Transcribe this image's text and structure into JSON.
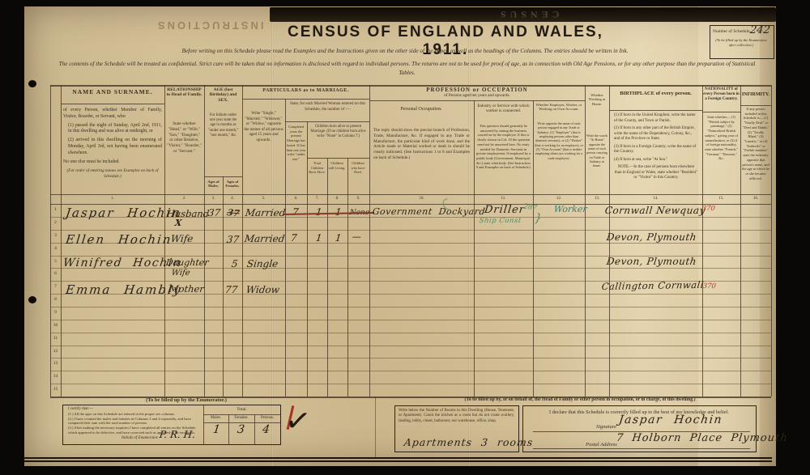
{
  "title": "CENSUS  OF  ENGLAND  AND  WALES,  1911.",
  "instructions_line1": "Before writing on this Schedule please read the Examples and the Instructions given on the other side of the paper, as well as the headings of the Columns.  The entries should be written in Ink.",
  "instructions_line2": "The contents of the Schedule will be treated as confidential.  Strict care will be taken that no information is disclosed with regard to individual persons.  The returns are not to be used for proof of age, as in connection with Old Age Pensions, or for any other purpose than the preparation of Statistical Tables.",
  "schedule_box": {
    "label": "Number of Schedule.",
    "value": "242",
    "note": "(To be filled up by the Enumerator after collection.)"
  },
  "showthrough": {
    "top_left": "INSTRUCTIONS",
    "top_band": "CENSUS"
  },
  "header": {
    "name": {
      "title": "NAME AND SURNAME.",
      "note1": "of every Person, whether Member of Family, Visitor, Boarder, or Servant, who",
      "item1": "(1) passed the night of Sunday, April 2nd, 1911, in this dwelling and was alive at midnight, or",
      "item2": "(2) arrived in this dwelling on the morning of Monday, April 3rd, not having been enumerated elsewhere.",
      "note2": "No one else must be included.",
      "note3": "(For order of entering names see Examples on back of Schedule.)"
    },
    "relationship": {
      "title": "RELATIONSHIP to Head of Family.",
      "note": "State whether \"Head,\" or \"Wife,\" \"Son,\" \"Daughter,\" or other Relative, \"Visitor,\" \"Boarder,\" or \"Servant.\""
    },
    "age": {
      "title": "AGE (last Birthday) and SEX.",
      "note": "For Infants under one year state the age in months as \"under one month,\" \"one month,\" &c.",
      "males": "Ages of Males.",
      "females": "Ages of Females."
    },
    "marriage": {
      "title": "PARTICULARS as to MARRIAGE.",
      "status_note": "Write \"Single,\" \"Married,\" \"Widower,\" or \"Widow,\" opposite the names of all persons aged 15 years and upwards.",
      "group_note": "State, for each Married Woman entered on this Schedule, the number of :—",
      "years": "Completed years the present Marriage has lasted. If less than one year write \"under one.\"",
      "children_group": "Children born alive to present Marriage. (If no children born alive write \"None\" in Column 7.)",
      "born": "Total Children Born Alive.",
      "living": "Children still Living.",
      "died": "Children who have Died."
    },
    "occupation": {
      "title": "PROFESSION or OCCUPATION",
      "subtitle": "of Persons aged ten years and upwards.",
      "personal": {
        "title": "Personal Occupation.",
        "note": "The reply should show the precise branch of Profession, Trade, Manufacture, &c.  If engaged in any Trade or Manufacture, the particular kind of work done, and the Article made or Material worked or dealt in should be clearly indicated.  (See Instructions 1 to 8 and Examples on back of Schedule.)"
      },
      "industry": {
        "title": "Industry or Service with which worker is connected.",
        "note": "This question should generally be answered by stating the business carried on by the employer.  If this is clearly shown in Col. 10 the question need not be answered here.  No entry needed for Domestic Servants in private employment.  If employed by a public body (Government, Municipal, &c.) state what body.  (See Instruction 9 and Examples on back of Schedule.)"
      },
      "status": {
        "title": "Whether Employer, Worker, or Working on Own Account.",
        "note": "Write opposite the name of each person engaged in any Trade or Industry: (1) \"Employer\" (that is employing persons other than domestic servants), or (2) \"Worker\" (that is working for an employer), or (3) \"Own Account\" (that is neither employing others nor working for a trade employer)."
      },
      "at_home": {
        "title": "Whether Working at Home.",
        "note": "Write the words \"At Home\" opposite the name of each person carrying on Trade or Industry at home."
      }
    },
    "birthplace": {
      "title": "BIRTHPLACE of every person.",
      "items": [
        "(1) If born in the United Kingdom, write the name of the County, and Town or Parish.",
        "(2) If born in any other part of the British Empire, write the name of the Dependency, Colony, &c., and of the Province or State.",
        "(3) If born in a Foreign Country, write the name of the Country.",
        "(4) If born at sea, write \"At Sea.\""
      ],
      "note": "NOTE.—In the case of persons born elsewhere than in England or Wales, state whether \"Resident\" or \"Visitor\" in this Country."
    },
    "nationality": {
      "title": "NATIONALITY of every Person born in a Foreign Country.",
      "note": "State whether— (1) \"British subject by parentage,\" (2) \"Naturalized British subject,\" giving year of naturalization, or (3) if of foreign nationality, state whether \"French,\" \"German,\" \"Russian,\" &c."
    },
    "infirmity": {
      "title": "INFIRMITY.",
      "note": "If any person included in this Schedule is— (1) \"Totally Deaf\" or \"Deaf and Dumb,\" (2) \"Totally Blind,\" (3) \"Lunatic,\" or (4) \"Imbecile\" or \"Feeble-minded,\" state the infirmity opposite that person's name, and the age at which he or she became afflicted."
    }
  },
  "column_numbers": [
    "1.",
    "2.",
    "3.",
    "4.",
    "5.",
    "6.",
    "7.",
    "8.",
    "9.",
    "10.",
    "11.",
    "12.",
    "13.",
    "14.",
    "15.",
    "16."
  ],
  "row_numbers": [
    "1",
    "2",
    "3",
    "4",
    "5",
    "6",
    "7",
    "8",
    "9",
    "10",
    "11",
    "12",
    "13",
    "14",
    "15"
  ],
  "entries": {
    "jaspar": {
      "name": "Jaspar Hochin",
      "relationship": "Husband",
      "mark": "X",
      "age_male": "37",
      "age_female_struck": "37",
      "marital": "Married",
      "years_married": "7",
      "children_born": "1",
      "children_living": "1",
      "children_died": "None",
      "occupation": "Government Dockyard",
      "industry": "Driller",
      "industry_note_green": "Ship Const",
      "code_green": "287",
      "brace": "}",
      "employment": "Worker",
      "birthplace": "Cornwall Newquay",
      "code_red": "370"
    },
    "ellen": {
      "name": "Ellen Hochin",
      "relationship": "Wife",
      "age_female": "37",
      "marital": "Married",
      "years_married": "7",
      "children_born": "1",
      "children_living": "1",
      "children_died": "—",
      "birthplace": "Devon, Plymouth"
    },
    "winifred": {
      "name": "Winifred Hochin",
      "relationship": "Daughter",
      "relationship_extra": "Wife",
      "age_female": "5",
      "marital": "Single",
      "birthplace": "Devon, Plymouth"
    },
    "emma": {
      "name": "Emma Hambly",
      "relationship": "Mother",
      "age_female": "77",
      "marital": "Widow",
      "birthplace": "Callington Cornwall",
      "code_red": "370"
    }
  },
  "enumerator_section": {
    "heading": "(To be filled up by the Enumerator.)",
    "certify_intro": "I certify that:—",
    "certify_items": [
      "(1.) All the ages on this Schedule are entered in the proper sex columns.",
      "(2.) I have counted the males and females in Columns 3 and 4 separately, and have compared their sum with the total number of persons.",
      "(3.) After making the necessary inquiries I have completed all entries on the Schedule which appeared to be defective, and have corrected such as appeared to be erroneous."
    ],
    "initials_label": "Initials of Enumerator.",
    "initials_value": "P. R. H.",
    "checkmark": "✓",
    "totals": {
      "title": "Total.",
      "males_label": "Males.",
      "females_label": "Females.",
      "persons_label": "Persons.",
      "males": "1",
      "females": "3",
      "persons": "4"
    }
  },
  "householder_section": {
    "heading": "(To be filled up by, or on behalf of, the Head of Family or other person in occupation, or in charge, of this dwelling.)",
    "rooms_note": "Write below the Number of Rooms in this Dwelling (House, Tenement, or Apartment).  Count the kitchen as a room but do not count scullery, landing, lobby, closet, bathroom; nor warehouse, office, shop.",
    "rooms_value": "Apartments 3 rooms",
    "declaration": "I declare that this Schedule is correctly filled up to the best of my knowledge and belief.",
    "signature_label": "Signature",
    "signature_value": "Jaspar Hochin",
    "address_label": "Postal Address",
    "address_value": "7 Holborn Place Plymouth"
  },
  "colors": {
    "paper": "#d7c49b",
    "ink": "#2b2115",
    "green_pencil": "#4c8a5f",
    "red_pencil": "#b13a28",
    "print": "#3a2f20"
  }
}
